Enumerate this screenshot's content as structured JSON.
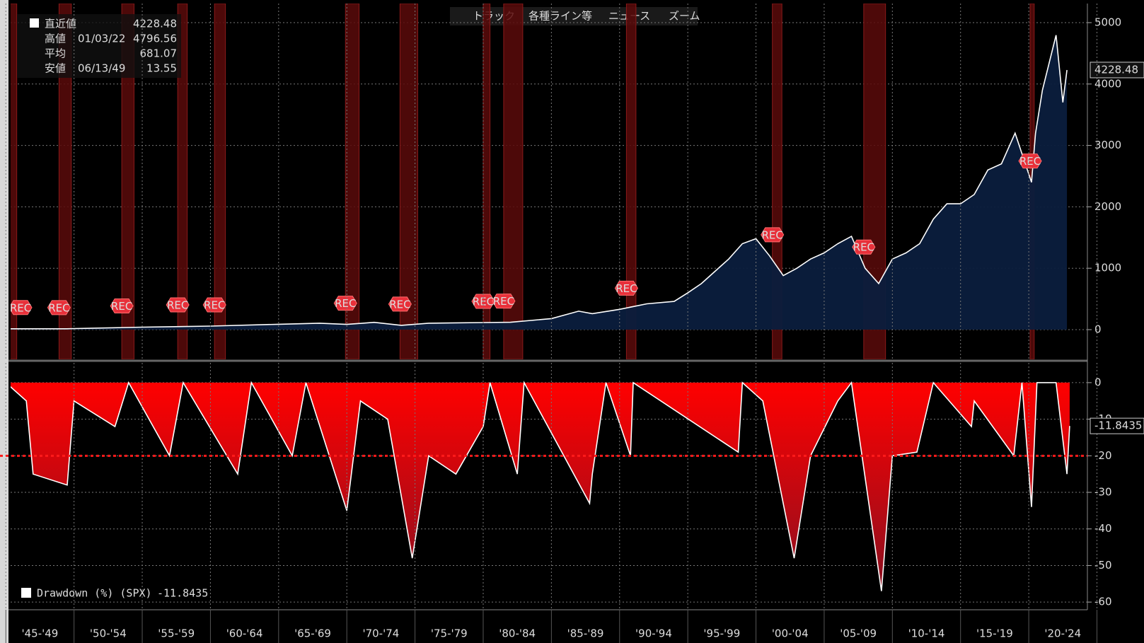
{
  "toolbar": [
    "トラック",
    "各種ライン等",
    "ニュース",
    "ズーム"
  ],
  "chart_data": [
    {
      "type": "area",
      "name": "SPX",
      "color": "#ffffff",
      "fill": "#0b1d3d",
      "xlim": [
        1945.35,
        2024.3
      ],
      "ylim": [
        -484,
        5311
      ],
      "yticks": [
        0,
        1000,
        2000,
        3000,
        4000,
        5000
      ],
      "grid": true,
      "x": [
        1945,
        1949.45,
        1950,
        1955,
        1960,
        1965,
        1968,
        1970,
        1972,
        1974,
        1976,
        1980,
        1982,
        1985,
        1987,
        1988,
        1990,
        1992,
        1994,
        1995,
        1996,
        1997,
        1998,
        1999,
        2000,
        2001,
        2002,
        2003,
        2004,
        2005,
        2006,
        2007,
        2008,
        2009,
        2010,
        2011,
        2012,
        2013,
        2014,
        2015,
        2016,
        2017,
        2018,
        2019,
        2020.2,
        2020.5,
        2021,
        2022,
        2022.5,
        2022.8
      ],
      "values": [
        14,
        13.55,
        17,
        40,
        58,
        88,
        105,
        85,
        118,
        70,
        105,
        115,
        120,
        180,
        300,
        260,
        330,
        420,
        460,
        600,
        750,
        950,
        1150,
        1400,
        1480,
        1200,
        880,
        1000,
        1150,
        1250,
        1400,
        1520,
        1000,
        750,
        1150,
        1250,
        1400,
        1800,
        2050,
        2050,
        2200,
        2600,
        2700,
        3200,
        2400,
        3200,
        3900,
        4796.56,
        3700,
        4228.48
      ],
      "recessions": [
        [
          1945.0,
          1945.8
        ],
        [
          1948.9,
          1949.8
        ],
        [
          1953.5,
          1954.4
        ],
        [
          1957.6,
          1958.3
        ],
        [
          1960.3,
          1961.1
        ],
        [
          1969.9,
          1970.9
        ],
        [
          1973.9,
          1975.2
        ],
        [
          1980.0,
          1980.5
        ],
        [
          1981.5,
          1982.9
        ],
        [
          1990.5,
          1991.2
        ],
        [
          2001.2,
          2001.9
        ],
        [
          2007.9,
          2009.5
        ],
        [
          2020.1,
          2020.4
        ]
      ],
      "recession_label": "REC",
      "legend": [
        {
          "name": "直近値",
          "value": 4228.48
        },
        {
          "name": "高値",
          "date": "01/03/22",
          "value": 4796.56
        },
        {
          "name": "平均",
          "value": 681.07
        },
        {
          "name": "安値",
          "date": "06/13/49",
          "value": 13.55
        }
      ]
    },
    {
      "type": "area",
      "name": "Drawdown (%) (SPX)",
      "color": "#ffffff",
      "fill": "#ff0000",
      "xlim": [
        1945.35,
        2024.3
      ],
      "ylim": [
        -62.1,
        5.4
      ],
      "yticks": [
        0,
        -10,
        -20,
        -30,
        -40,
        -50,
        -60
      ],
      "grid": true,
      "threshold": -20,
      "categories": [
        "'45-'49",
        "'50-'54",
        "'55-'59",
        "'60-'64",
        "'65-'69",
        "'70-'74",
        "'75-'79",
        "'80-'84",
        "'85-'89",
        "'90-'94",
        "'95-'99",
        "'00-'04",
        "'05-'09",
        "'10-'14",
        "'15-'19",
        "'20-'24"
      ],
      "x_bins": [
        1945,
        1950,
        1955,
        1960,
        1965,
        1970,
        1975,
        1980,
        1985,
        1990,
        1995,
        2000,
        2005,
        2010,
        2015,
        2020,
        2025
      ],
      "x": [
        1945,
        1946.5,
        1947,
        1949.5,
        1950,
        1953,
        1954,
        1957,
        1958,
        1962,
        1963,
        1966,
        1967,
        1970,
        1971,
        1973,
        1974.8,
        1976,
        1978,
        1980,
        1980.5,
        1982.5,
        1983,
        1987.8,
        1988,
        1989,
        1990.8,
        1991,
        1998.7,
        1999,
        2000.5,
        2002.8,
        2004,
        2006,
        2007,
        2009.2,
        2010,
        2011.8,
        2013,
        2015.8,
        2016,
        2018.9,
        2019.5,
        2020.2,
        2020.6,
        2022,
        2022.8,
        2023
      ],
      "values": [
        0,
        -5,
        -25,
        -28,
        -5,
        -12,
        0,
        -20,
        0,
        -25,
        0,
        -20,
        0,
        -35,
        -5,
        -10,
        -48,
        -20,
        -25,
        -12,
        0,
        -25,
        0,
        -33,
        -25,
        0,
        -20,
        0,
        -19,
        0,
        -5,
        -48,
        -20,
        -5,
        0,
        -57,
        -20,
        -19,
        0,
        -12,
        -5,
        -20,
        0,
        -34,
        0,
        0,
        -25,
        -11.8435
      ]
    }
  ]
}
